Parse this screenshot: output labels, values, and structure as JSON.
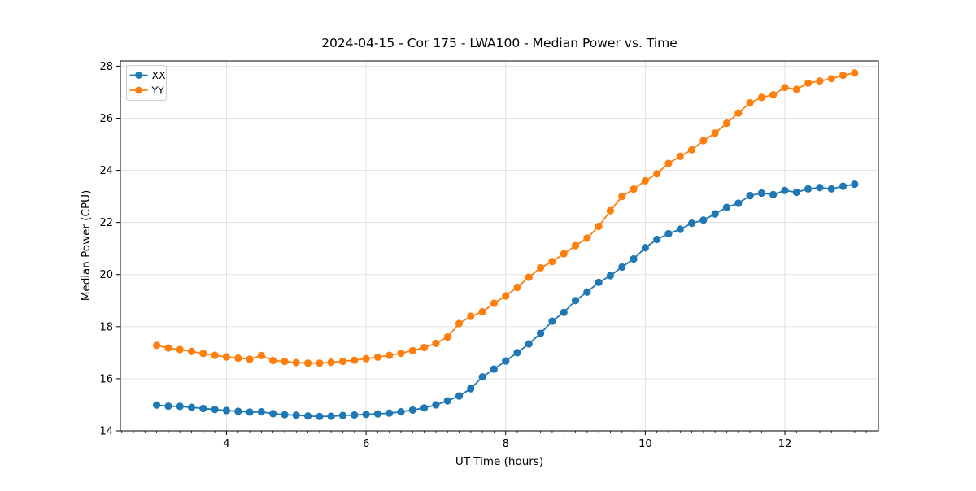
{
  "chart": {
    "title": "2024-04-15 - Cor 175 - LWA100 - Median Power vs. Time",
    "xlabel": "UT Time (hours)",
    "ylabel": "Median Power (CPU)"
  },
  "chart_data": {
    "type": "line",
    "title": "2024-04-15 - Cor 175 - LWA100 - Median Power vs. Time",
    "xlabel": "UT Time (hours)",
    "ylabel": "Median Power (CPU)",
    "xlim": [
      2.48,
      13.34
    ],
    "ylim": [
      14.0,
      28.2
    ],
    "x_ticks": [
      4,
      6,
      8,
      10,
      12
    ],
    "y_ticks": [
      14,
      16,
      18,
      20,
      22,
      24,
      26,
      28
    ],
    "x_minor_tick_step": 0.16667,
    "grid": true,
    "legend_position": "upper left",
    "grid_color": "#e0e0e0",
    "spine_color": "#000000",
    "marker": "o",
    "x": [
      3.0,
      3.1667,
      3.3333,
      3.5,
      3.6667,
      3.8333,
      4.0,
      4.1667,
      4.3333,
      4.5,
      4.6667,
      4.8333,
      5.0,
      5.1667,
      5.3333,
      5.5,
      5.6667,
      5.8333,
      6.0,
      6.1667,
      6.3333,
      6.5,
      6.6667,
      6.8333,
      7.0,
      7.1667,
      7.3333,
      7.5,
      7.6667,
      7.8333,
      8.0,
      8.1667,
      8.3333,
      8.5,
      8.6667,
      8.8333,
      9.0,
      9.1667,
      9.3333,
      9.5,
      9.6667,
      9.8333,
      10.0,
      10.1667,
      10.3333,
      10.5,
      10.6667,
      10.8333,
      11.0,
      11.1667,
      11.3333,
      11.5,
      11.6667,
      11.8333,
      12.0,
      12.1667,
      12.3333,
      12.5,
      12.6667,
      12.8333,
      13.0
    ],
    "series": [
      {
        "name": "XX",
        "color": "#1f77b4",
        "values": [
          14.99,
          14.95,
          14.94,
          14.9,
          14.86,
          14.82,
          14.78,
          14.75,
          14.72,
          14.73,
          14.66,
          14.62,
          14.6,
          14.57,
          14.55,
          14.56,
          14.59,
          14.61,
          14.63,
          14.65,
          14.68,
          14.73,
          14.8,
          14.88,
          15.0,
          15.15,
          15.34,
          15.62,
          16.07,
          16.37,
          16.68,
          17.0,
          17.34,
          17.74,
          18.21,
          18.55,
          19.0,
          19.33,
          19.7,
          19.96,
          20.29,
          20.6,
          21.03,
          21.35,
          21.57,
          21.74,
          21.97,
          22.09,
          22.33,
          22.58,
          22.74,
          23.03,
          23.13,
          23.07,
          23.23,
          23.16,
          23.29,
          23.34,
          23.29,
          23.39,
          23.47
        ]
      },
      {
        "name": "YY",
        "color": "#ff7f0e",
        "values": [
          17.28,
          17.18,
          17.12,
          17.05,
          16.97,
          16.9,
          16.84,
          16.79,
          16.75,
          16.89,
          16.7,
          16.66,
          16.62,
          16.6,
          16.6,
          16.63,
          16.67,
          16.71,
          16.77,
          16.83,
          16.9,
          16.98,
          17.08,
          17.2,
          17.36,
          17.6,
          18.12,
          18.4,
          18.57,
          18.9,
          19.18,
          19.51,
          19.9,
          20.26,
          20.5,
          20.8,
          21.11,
          21.4,
          21.85,
          22.45,
          23.0,
          23.28,
          23.6,
          23.87,
          24.27,
          24.54,
          24.79,
          25.14,
          25.43,
          25.81,
          26.2,
          26.59,
          26.8,
          26.9,
          27.18,
          27.11,
          27.35,
          27.43,
          27.52,
          27.65,
          27.74
        ]
      }
    ]
  }
}
